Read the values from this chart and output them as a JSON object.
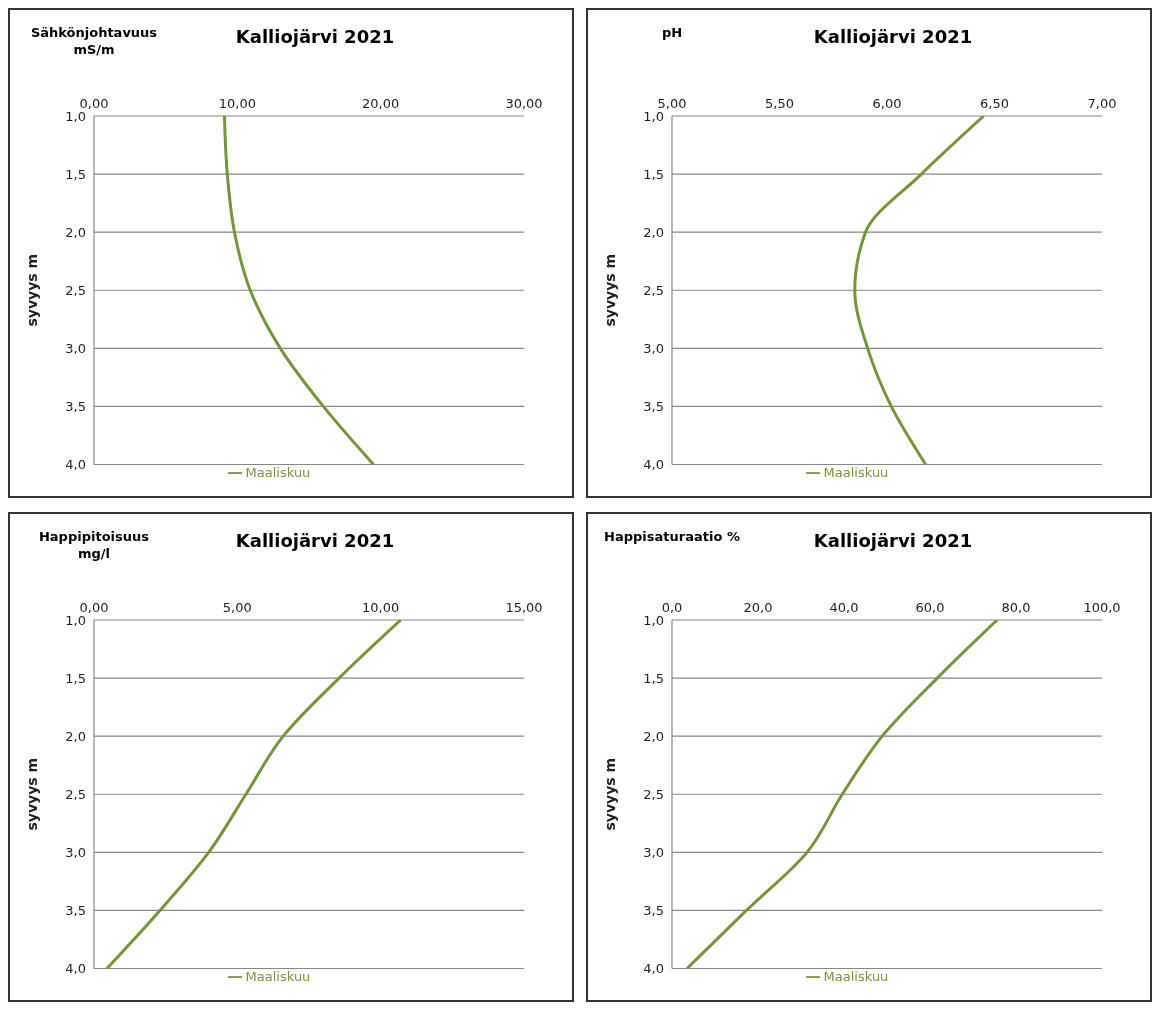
{
  "chart_data": [
    {
      "type": "line",
      "title": "Kalliojärvi 2021",
      "xlabel": "Sähkönjohtavuus mS/m",
      "ylabel": "syvyys m",
      "series": [
        {
          "name": "Maaliskuu",
          "color": "#77933c",
          "x": [
            9.1,
            9.3,
            9.8,
            10.9,
            13.0,
            16.0,
            19.5
          ],
          "values": [
            1.0,
            1.5,
            2.0,
            2.5,
            3.0,
            3.5,
            4.0
          ]
        }
      ],
      "xlim": [
        0,
        30
      ],
      "xticks": [
        {
          "value": 0,
          "label": "0,00"
        },
        {
          "value": 10,
          "label": "10,00"
        },
        {
          "value": 20,
          "label": "20,00"
        },
        {
          "value": 30,
          "label": "30,00"
        }
      ],
      "ylim": [
        4.0,
        1.0
      ],
      "yticks": [
        {
          "value": 1.0,
          "label": "1,0"
        },
        {
          "value": 1.5,
          "label": "1,5"
        },
        {
          "value": 2.0,
          "label": "2,0"
        },
        {
          "value": 2.5,
          "label": "2,5"
        },
        {
          "value": 3.0,
          "label": "3,0"
        },
        {
          "value": 3.5,
          "label": "3,5"
        },
        {
          "value": 4.0,
          "label": "4,0"
        }
      ],
      "grid": "y",
      "legend": "bottom",
      "marker": "none"
    },
    {
      "type": "line",
      "title": "Kalliojärvi 2021",
      "xlabel": "pH",
      "ylabel": "syvyys m",
      "series": [
        {
          "name": "Maaliskuu",
          "color": "#77933c",
          "x": [
            6.45,
            6.16,
            5.9,
            5.85,
            5.91,
            6.02,
            6.18
          ],
          "values": [
            1.0,
            1.5,
            2.0,
            2.5,
            3.0,
            3.5,
            4.0
          ]
        }
      ],
      "xlim": [
        5,
        7
      ],
      "xticks": [
        {
          "value": 5,
          "label": "5,00"
        },
        {
          "value": 5.5,
          "label": "5,50"
        },
        {
          "value": 6,
          "label": "6,00"
        },
        {
          "value": 6.5,
          "label": "6,50"
        },
        {
          "value": 7,
          "label": "7,00"
        }
      ],
      "ylim": [
        4.0,
        1.0
      ],
      "yticks": [
        {
          "value": 1.0,
          "label": "1,0"
        },
        {
          "value": 1.5,
          "label": "1,5"
        },
        {
          "value": 2.0,
          "label": "2,0"
        },
        {
          "value": 2.5,
          "label": "2,5"
        },
        {
          "value": 3.0,
          "label": "3,0"
        },
        {
          "value": 3.5,
          "label": "3,5"
        },
        {
          "value": 4.0,
          "label": "4,0"
        }
      ],
      "grid": "y",
      "legend": "bottom",
      "marker": "none"
    },
    {
      "type": "line",
      "title": "Kalliojärvi 2021",
      "xlabel": "Happipitoisuus mg/l",
      "ylabel": "syvyys m",
      "series": [
        {
          "name": "Maaliskuu",
          "color": "#77933c",
          "x": [
            10.7,
            8.55,
            6.6,
            5.3,
            4.0,
            2.3,
            0.45
          ],
          "values": [
            1.0,
            1.5,
            2.0,
            2.5,
            3.0,
            3.5,
            4.0
          ]
        }
      ],
      "xlim": [
        0,
        15
      ],
      "xticks": [
        {
          "value": 0,
          "label": "0,00"
        },
        {
          "value": 5,
          "label": "5,00"
        },
        {
          "value": 10,
          "label": "10,00"
        },
        {
          "value": 15,
          "label": "15,00"
        }
      ],
      "ylim": [
        4.0,
        1.0
      ],
      "yticks": [
        {
          "value": 1.0,
          "label": "1,0"
        },
        {
          "value": 1.5,
          "label": "1,5"
        },
        {
          "value": 2.0,
          "label": "2,0"
        },
        {
          "value": 2.5,
          "label": "2,5"
        },
        {
          "value": 3.0,
          "label": "3,0"
        },
        {
          "value": 3.5,
          "label": "3,5"
        },
        {
          "value": 4.0,
          "label": "4,0"
        }
      ],
      "grid": "y",
      "legend": "bottom",
      "marker": "none"
    },
    {
      "type": "line",
      "title": "Kalliojärvi 2021",
      "xlabel": "Happisaturaatio %",
      "ylabel": "syvyys m",
      "series": [
        {
          "name": "Maaliskuu",
          "color": "#77933c",
          "x": [
            75.6,
            61.7,
            48.9,
            39.6,
            31.4,
            17.3,
            3.5
          ],
          "values": [
            1.0,
            1.5,
            2.0,
            2.5,
            3.0,
            3.5,
            4.0
          ]
        }
      ],
      "xlim": [
        0,
        100
      ],
      "xticks": [
        {
          "value": 0,
          "label": "0,0"
        },
        {
          "value": 20,
          "label": "20,0"
        },
        {
          "value": 40,
          "label": "40,0"
        },
        {
          "value": 60,
          "label": "60,0"
        },
        {
          "value": 80,
          "label": "80,0"
        },
        {
          "value": 100,
          "label": "100,0"
        }
      ],
      "ylim": [
        4.0,
        1.0
      ],
      "yticks": [
        {
          "value": 1.0,
          "label": "1,0"
        },
        {
          "value": 1.5,
          "label": "1,5"
        },
        {
          "value": 2.0,
          "label": "2,0"
        },
        {
          "value": 2.5,
          "label": "2,5"
        },
        {
          "value": 3.0,
          "label": "3,0"
        },
        {
          "value": 3.5,
          "label": "3,5"
        },
        {
          "value": 4.0,
          "label": "4,0"
        }
      ],
      "grid": "y",
      "legend": "bottom",
      "marker": "none"
    }
  ]
}
